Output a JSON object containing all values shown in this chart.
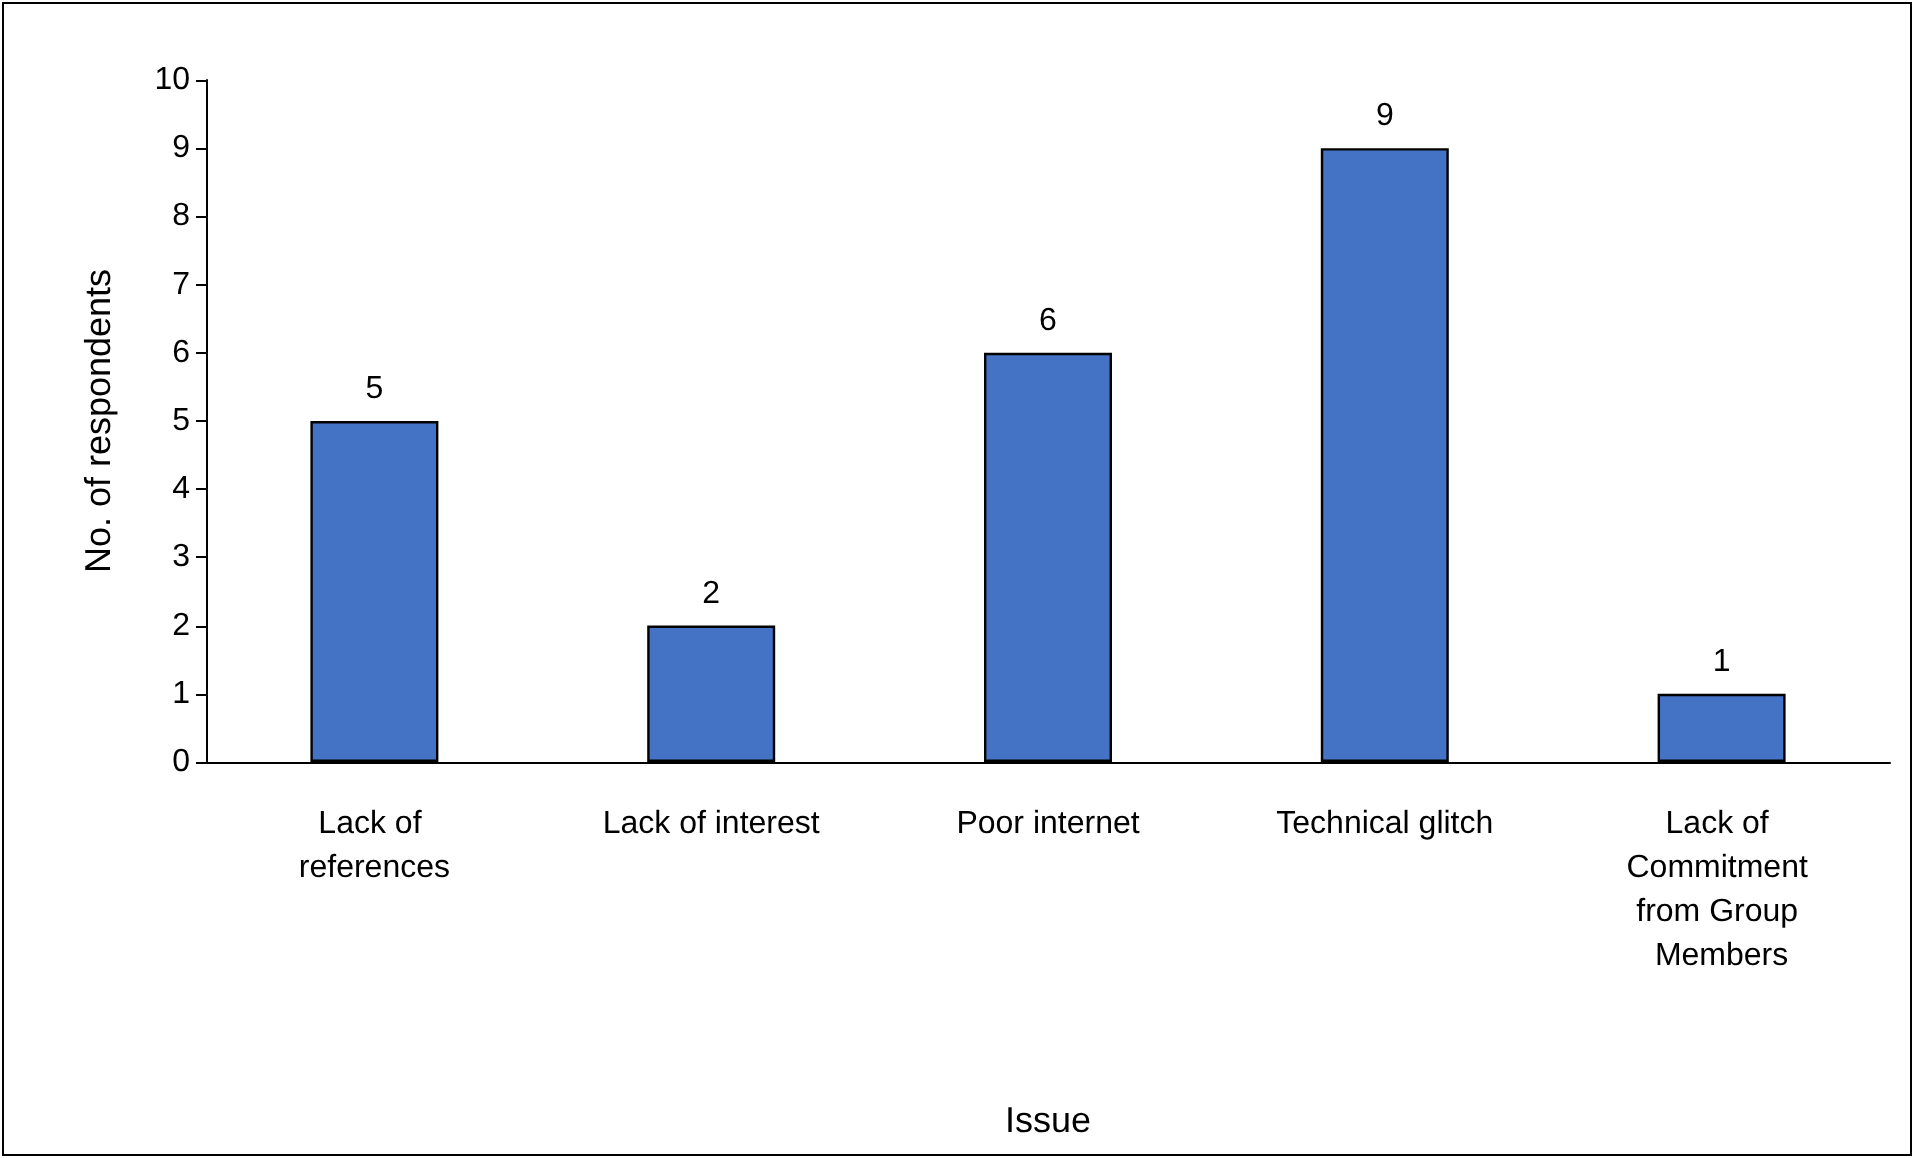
{
  "chart_data": {
    "type": "bar",
    "xlabel": "Issue",
    "ylabel": "No. of respondents",
    "categories": [
      "Lack of references",
      "Lack of interest",
      "Poor internet",
      "Technical glitch",
      "Lack of Commitment from Group Members"
    ],
    "values": [
      5,
      2,
      6,
      9,
      1
    ],
    "color": "#4472c4",
    "ylim": [
      0,
      10
    ],
    "yticks": [
      0,
      1,
      2,
      3,
      4,
      5,
      6,
      7,
      8,
      9,
      10
    ],
    "grid": false,
    "data_labels": true
  }
}
